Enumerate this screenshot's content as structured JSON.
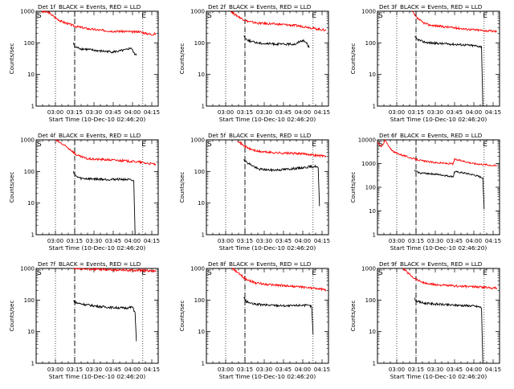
{
  "figure": {
    "legend_text": "BLACK = Events, RED = LLD",
    "xlabel": "Start Time (10-Dec-10 02:46:20)",
    "ylabel": "Counts/sec"
  },
  "chart_data": [
    {
      "type": "line",
      "title": "Det 1f",
      "xlabel": "Start Time (10-Dec-10 02:46:20)",
      "ylabel": "Counts/sec",
      "x_ticks": [
        "03:00",
        "03:15",
        "03:30",
        "03:45",
        "04:00",
        "04:15"
      ],
      "y_ticks": [
        "1",
        "10",
        "100",
        "1000"
      ],
      "xlim_minutes_after_0245": [
        0,
        95
      ],
      "ylim": [
        1,
        1000
      ],
      "yscale": "log",
      "markers": {
        "S": "S",
        "E": "E"
      },
      "series": [
        {
          "name": "LLD",
          "color": "#ff0000",
          "points": [
            [
              4,
              1000
            ],
            [
              10,
              900
            ],
            [
              15,
              620
            ],
            [
              20,
              470
            ],
            [
              30,
              340
            ],
            [
              40,
              280
            ],
            [
              50,
              250
            ],
            [
              60,
              235
            ],
            [
              70,
              230
            ],
            [
              76,
              220
            ],
            [
              80,
              230
            ],
            [
              85,
              200
            ],
            [
              90,
              185
            ],
            [
              93,
              195
            ]
          ]
        },
        {
          "name": "Events",
          "color": "#000000",
          "points": [
            [
              29,
              100
            ],
            [
              30,
              75
            ],
            [
              35,
              65
            ],
            [
              40,
              62
            ],
            [
              50,
              55
            ],
            [
              60,
              52
            ],
            [
              65,
              55
            ],
            [
              70,
              60
            ],
            [
              74,
              70
            ],
            [
              76,
              48
            ],
            [
              78,
              40
            ]
          ]
        }
      ]
    },
    {
      "type": "line",
      "title": "Det 2f",
      "xlabel": "Start Time (10-Dec-10 02:46:20)",
      "ylabel": "Counts/sec",
      "x_ticks": [
        "03:00",
        "03:15",
        "03:30",
        "03:45",
        "04:00",
        "04:15"
      ],
      "y_ticks": [
        "1",
        "10",
        "100",
        "1000"
      ],
      "xlim_minutes_after_0245": [
        0,
        95
      ],
      "ylim": [
        1,
        1000
      ],
      "yscale": "log",
      "markers": {
        "S": "S",
        "E": "E"
      },
      "series": [
        {
          "name": "LLD",
          "color": "#ff0000",
          "points": [
            [
              19,
              1000
            ],
            [
              22,
              800
            ],
            [
              27,
              600
            ],
            [
              32,
              480
            ],
            [
              40,
              420
            ],
            [
              50,
              400
            ],
            [
              60,
              380
            ],
            [
              70,
              350
            ],
            [
              78,
              320
            ],
            [
              85,
              280
            ],
            [
              93,
              250
            ]
          ]
        },
        {
          "name": "Events",
          "color": "#000000",
          "points": [
            [
              29,
              170
            ],
            [
              31,
              130
            ],
            [
              35,
              110
            ],
            [
              40,
              100
            ],
            [
              45,
              95
            ],
            [
              55,
              92
            ],
            [
              60,
              90
            ],
            [
              70,
              92
            ],
            [
              72,
              110
            ],
            [
              75,
              120
            ],
            [
              78,
              100
            ],
            [
              80,
              70
            ]
          ]
        }
      ]
    },
    {
      "type": "line",
      "title": "Det 3f",
      "xlabel": "Start Time (10-Dec-10 02:46:20)",
      "ylabel": "Counts/sec",
      "x_ticks": [
        "03:00",
        "03:15",
        "03:30",
        "03:45",
        "04:00",
        "04:15"
      ],
      "y_ticks": [
        "1",
        "10",
        "100",
        "1000"
      ],
      "xlim_minutes_after_0245": [
        0,
        95
      ],
      "ylim": [
        1,
        1000
      ],
      "yscale": "log",
      "markers": {
        "S": "S",
        "E": "E"
      },
      "series": [
        {
          "name": "LLD",
          "color": "#ff0000",
          "points": [
            [
              27,
              1000
            ],
            [
              30,
              650
            ],
            [
              35,
              450
            ],
            [
              40,
              370
            ],
            [
              50,
              330
            ],
            [
              60,
              300
            ],
            [
              70,
              270
            ],
            [
              80,
              250
            ],
            [
              93,
              230
            ]
          ]
        },
        {
          "name": "Events",
          "color": "#000000",
          "points": [
            [
              29,
              150
            ],
            [
              31,
              130
            ],
            [
              35,
              110
            ],
            [
              40,
              100
            ],
            [
              50,
              95
            ],
            [
              60,
              90
            ],
            [
              70,
              85
            ],
            [
              79,
              78
            ],
            [
              81,
              75
            ],
            [
              82,
              1
            ]
          ]
        }
      ]
    },
    {
      "type": "line",
      "title": "Det 4f",
      "xlabel": "Start Time (10-Dec-10 02:46:20)",
      "ylabel": "Counts/sec",
      "x_ticks": [
        "03:00",
        "03:15",
        "03:30",
        "03:45",
        "04:00",
        "04:15"
      ],
      "y_ticks": [
        "1",
        "10",
        "100",
        "1000"
      ],
      "xlim_minutes_after_0245": [
        0,
        95
      ],
      "ylim": [
        1,
        1000
      ],
      "yscale": "log",
      "markers": {
        "S": "S",
        "E": "E"
      },
      "series": [
        {
          "name": "LLD",
          "color": "#ff0000",
          "points": [
            [
              15,
              1000
            ],
            [
              20,
              750
            ],
            [
              27,
              480
            ],
            [
              32,
              320
            ],
            [
              40,
              250
            ],
            [
              50,
              240
            ],
            [
              60,
              230
            ],
            [
              70,
              215
            ],
            [
              80,
              200
            ],
            [
              85,
              185
            ],
            [
              93,
              170
            ]
          ]
        },
        {
          "name": "Events",
          "color": "#000000",
          "points": [
            [
              29,
              100
            ],
            [
              31,
              70
            ],
            [
              35,
              60
            ],
            [
              45,
              58
            ],
            [
              55,
              56
            ],
            [
              65,
              57
            ],
            [
              72,
              55
            ],
            [
              76,
              50
            ],
            [
              77,
              1
            ]
          ]
        }
      ]
    },
    {
      "type": "line",
      "title": "Det 5f",
      "xlabel": "Start Time (10-Dec-10 02:46:20)",
      "ylabel": "Counts/sec",
      "x_ticks": [
        "03:00",
        "03:15",
        "03:30",
        "03:45",
        "04:00",
        "04:15"
      ],
      "y_ticks": [
        "1",
        "10",
        "100",
        "1000"
      ],
      "xlim_minutes_after_0245": [
        0,
        95
      ],
      "ylim": [
        1,
        1000
      ],
      "yscale": "log",
      "markers": {
        "S": "S",
        "E": "E"
      },
      "series": [
        {
          "name": "LLD",
          "color": "#ff0000",
          "points": [
            [
              24,
              1000
            ],
            [
              28,
              700
            ],
            [
              33,
              530
            ],
            [
              40,
              430
            ],
            [
              50,
              400
            ],
            [
              60,
              380
            ],
            [
              70,
              370
            ],
            [
              80,
              350
            ],
            [
              86,
              320
            ],
            [
              93,
              310
            ]
          ]
        },
        {
          "name": "Events",
          "color": "#000000",
          "points": [
            [
              29,
              250
            ],
            [
              31,
              200
            ],
            [
              35,
              160
            ],
            [
              40,
              120
            ],
            [
              50,
              110
            ],
            [
              60,
              115
            ],
            [
              70,
              125
            ],
            [
              80,
              140
            ],
            [
              85,
              145
            ],
            [
              87,
              130
            ],
            [
              88,
              8
            ]
          ]
        }
      ]
    },
    {
      "type": "line",
      "title": "Det 6f",
      "xlabel": "Start Time (10-Dec-10 02:46:20)",
      "ylabel": "Counts/sec",
      "x_ticks": [
        "03:00",
        "03:15",
        "03:30",
        "03:45",
        "04:00",
        "04:15"
      ],
      "y_ticks": [
        "1",
        "10",
        "100",
        "1000"
      ],
      "xlim_minutes_after_0245": [
        0,
        95
      ],
      "ylim": [
        1,
        10000
      ],
      "yscale": "log",
      "markers": {
        "S": "S",
        "E": "E"
      },
      "series": [
        {
          "name": "LLD",
          "color": "#ff0000",
          "points": [
            [
              0,
              8000
            ],
            [
              3,
              5000
            ],
            [
              6,
              9800
            ],
            [
              9,
              5000
            ],
            [
              13,
              3000
            ],
            [
              20,
              2200
            ],
            [
              28,
              1600
            ],
            [
              35,
              1300
            ],
            [
              45,
              1100
            ],
            [
              55,
              1000
            ],
            [
              59,
              980
            ],
            [
              60,
              1500
            ],
            [
              66,
              1300
            ],
            [
              75,
              1000
            ],
            [
              85,
              900
            ],
            [
              93,
              800
            ]
          ]
        },
        {
          "name": "Events",
          "color": "#000000",
          "points": [
            [
              29,
              500
            ],
            [
              33,
              400
            ],
            [
              40,
              380
            ],
            [
              48,
              340
            ],
            [
              55,
              300
            ],
            [
              59,
              280
            ],
            [
              60,
              450
            ],
            [
              66,
              410
            ],
            [
              75,
              330
            ],
            [
              80,
              270
            ],
            [
              82,
              250
            ],
            [
              83,
              12
            ]
          ]
        }
      ]
    },
    {
      "type": "line",
      "title": "Det 7f",
      "xlabel": "Start Time (10-Dec-10 02:46:20)",
      "ylabel": "Counts/sec",
      "x_ticks": [
        "03:00",
        "03:15",
        "03:30",
        "03:45",
        "04:00",
        "04:15"
      ],
      "y_ticks": [
        "1",
        "10",
        "100",
        "1000"
      ],
      "xlim_minutes_after_0245": [
        0,
        95
      ],
      "ylim": [
        1,
        1000
      ],
      "yscale": "log",
      "markers": {
        "S": "S",
        "E": "E"
      },
      "series": [
        {
          "name": "LLD",
          "color": "#ff0000",
          "points": [
            [
              29,
              1000
            ],
            [
              40,
              950
            ],
            [
              50,
              930
            ],
            [
              60,
              900
            ],
            [
              70,
              880
            ],
            [
              80,
              860
            ],
            [
              85,
              870
            ],
            [
              93,
              800
            ]
          ]
        },
        {
          "name": "Events",
          "color": "#000000",
          "points": [
            [
              29,
              95
            ],
            [
              32,
              80
            ],
            [
              40,
              70
            ],
            [
              50,
              62
            ],
            [
              60,
              58
            ],
            [
              70,
              56
            ],
            [
              75,
              60
            ],
            [
              77,
              40
            ],
            [
              78,
              5
            ]
          ]
        }
      ]
    },
    {
      "type": "line",
      "title": "Det 8f",
      "xlabel": "Start Time (10-Dec-10 02:46:20)",
      "ylabel": "Counts/sec",
      "x_ticks": [
        "03:00",
        "03:15",
        "03:30",
        "03:45",
        "04:00",
        "04:15"
      ],
      "y_ticks": [
        "1",
        "10",
        "100",
        "1000"
      ],
      "xlim_minutes_after_0245": [
        0,
        95
      ],
      "ylim": [
        1,
        1000
      ],
      "yscale": "log",
      "markers": {
        "S": "S",
        "E": "E"
      },
      "series": [
        {
          "name": "LLD",
          "color": "#ff0000",
          "points": [
            [
              20,
              1000
            ],
            [
              25,
              700
            ],
            [
              30,
              480
            ],
            [
              38,
              350
            ],
            [
              48,
              310
            ],
            [
              58,
              290
            ],
            [
              68,
              270
            ],
            [
              78,
              250
            ],
            [
              86,
              230
            ],
            [
              93,
              210
            ]
          ]
        },
        {
          "name": "Events",
          "color": "#000000",
          "points": [
            [
              29,
              120
            ],
            [
              31,
              90
            ],
            [
              36,
              75
            ],
            [
              45,
              70
            ],
            [
              55,
              68
            ],
            [
              65,
              65
            ],
            [
              75,
              70
            ],
            [
              81,
              65
            ],
            [
              82,
              60
            ],
            [
              83,
              8
            ]
          ]
        }
      ]
    },
    {
      "type": "line",
      "title": "Det 9f",
      "xlabel": "Start Time (10-Dec-10 02:46:20)",
      "ylabel": "Counts/sec",
      "x_ticks": [
        "03:00",
        "03:15",
        "03:30",
        "03:45",
        "04:00",
        "04:15"
      ],
      "y_ticks": [
        "1",
        "10",
        "100",
        "1000"
      ],
      "xlim_minutes_after_0245": [
        0,
        95
      ],
      "ylim": [
        1,
        1000
      ],
      "yscale": "log",
      "markers": {
        "S": "S",
        "E": "E"
      },
      "series": [
        {
          "name": "LLD",
          "color": "#ff0000",
          "points": [
            [
              20,
              1000
            ],
            [
              25,
              650
            ],
            [
              30,
              450
            ],
            [
              38,
              330
            ],
            [
              48,
              300
            ],
            [
              58,
              280
            ],
            [
              68,
              270
            ],
            [
              78,
              260
            ],
            [
              86,
              250
            ],
            [
              93,
              240
            ]
          ]
        },
        {
          "name": "Events",
          "color": "#000000",
          "points": [
            [
              29,
              110
            ],
            [
              31,
              90
            ],
            [
              36,
              80
            ],
            [
              45,
              75
            ],
            [
              55,
              70
            ],
            [
              65,
              68
            ],
            [
              75,
              65
            ],
            [
              80,
              60
            ],
            [
              81,
              55
            ],
            [
              82,
              1
            ]
          ]
        }
      ]
    }
  ]
}
